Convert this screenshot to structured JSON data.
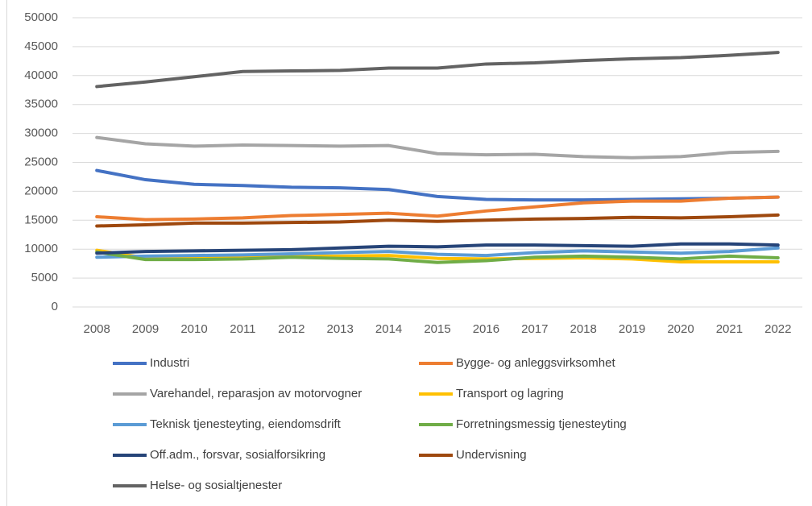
{
  "chart_data": {
    "type": "line",
    "categories": [
      "2008",
      "2009",
      "2010",
      "2011",
      "2012",
      "2013",
      "2014",
      "2015",
      "2016",
      "2017",
      "2018",
      "2019",
      "2020",
      "2021",
      "2022"
    ],
    "ylim": [
      0,
      50000
    ],
    "yticks": [
      0,
      5000,
      10000,
      15000,
      20000,
      25000,
      30000,
      35000,
      40000,
      45000,
      50000
    ],
    "grid": true,
    "legend": "bottom",
    "series": [
      {
        "name": "Industri",
        "color": "#4472c4",
        "values": [
          23600,
          22000,
          21200,
          21000,
          20700,
          20600,
          20300,
          19100,
          18600,
          18500,
          18500,
          18600,
          18700,
          18800,
          19000
        ]
      },
      {
        "name": "Bygge- og anleggsvirksomhet",
        "color": "#ed7d31",
        "values": [
          15600,
          15100,
          15200,
          15400,
          15800,
          16000,
          16200,
          15700,
          16600,
          17300,
          18000,
          18300,
          18300,
          18800,
          19000
        ]
      },
      {
        "name": "Varehandel, reparasjon av motorvogner",
        "color": "#a5a5a5",
        "values": [
          29300,
          28200,
          27800,
          28000,
          27900,
          27800,
          27900,
          26500,
          26300,
          26400,
          26000,
          25800,
          26000,
          26700,
          26900
        ]
      },
      {
        "name": "Transport og lagring",
        "color": "#ffc000",
        "values": [
          9800,
          8500,
          8500,
          8600,
          8700,
          8800,
          8900,
          8400,
          8300,
          8400,
          8500,
          8300,
          7800,
          7800,
          7800
        ]
      },
      {
        "name": "Teknisk tjenesteyting, eiendomsdrift",
        "color": "#5b9bd5",
        "values": [
          8600,
          8800,
          8900,
          9000,
          9200,
          9400,
          9600,
          9100,
          8900,
          9400,
          9700,
          9500,
          9300,
          9600,
          10200
        ]
      },
      {
        "name": "Forretningsmessig tjenesteyting",
        "color": "#70ad47",
        "values": [
          9500,
          8200,
          8200,
          8300,
          8600,
          8400,
          8300,
          7700,
          8000,
          8600,
          8800,
          8600,
          8300,
          8800,
          8500
        ]
      },
      {
        "name": "Off.adm., forsvar, sosialforsikring",
        "color": "#264478",
        "values": [
          9300,
          9600,
          9700,
          9800,
          9900,
          10200,
          10500,
          10400,
          10700,
          10700,
          10600,
          10500,
          10900,
          10900,
          10700
        ]
      },
      {
        "name": "Undervisning",
        "color": "#9e480e",
        "values": [
          14000,
          14200,
          14500,
          14500,
          14600,
          14700,
          15000,
          14800,
          15000,
          15200,
          15300,
          15500,
          15400,
          15600,
          15900
        ]
      },
      {
        "name": "Helse- og sosialtjenester",
        "color": "#636363",
        "values": [
          38100,
          38900,
          39800,
          40700,
          40800,
          40900,
          41300,
          41300,
          42000,
          42200,
          42600,
          42900,
          43100,
          43500,
          44000
        ]
      }
    ]
  }
}
